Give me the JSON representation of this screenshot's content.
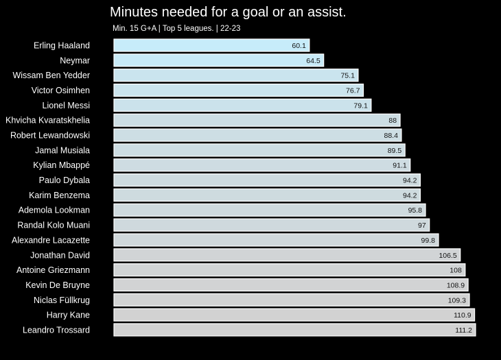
{
  "chart_data": {
    "type": "bar",
    "orientation": "horizontal",
    "title": "Minutes needed for a goal or an assist.",
    "subtitle": "Min. 15 G+A | Top 5 leagues. | 22-23",
    "xlabel": "",
    "ylabel": "",
    "grid": false,
    "xlim": [
      0,
      111.2
    ],
    "colors": {
      "background": "#000000",
      "bar_low": "#c7ecfa",
      "bar_high": "#d2d2d2",
      "text": "#ffffff"
    },
    "categories": [
      "Erling Haaland",
      "Neymar",
      "Wissam Ben Yedder",
      "Victor Osimhen",
      "Lionel Messi",
      "Khvicha Kvaratskhelia",
      "Robert Lewandowski",
      "Jamal Musiala",
      "Kylian Mbappé",
      "Paulo Dybala",
      "Karim Benzema",
      "Ademola Lookman",
      "Randal Kolo Muani",
      "Alexandre Lacazette",
      "Jonathan David",
      "Antoine Griezmann",
      "Kevin De Bruyne",
      "Niclas Füllkrug",
      "Harry Kane",
      "Leandro Trossard"
    ],
    "values": [
      60.1,
      64.5,
      75.1,
      76.7,
      79.1,
      88,
      88.4,
      89.5,
      91.1,
      94.2,
      94.2,
      95.8,
      97,
      99.8,
      106.5,
      108,
      108.9,
      109.3,
      110.9,
      111.2
    ]
  }
}
